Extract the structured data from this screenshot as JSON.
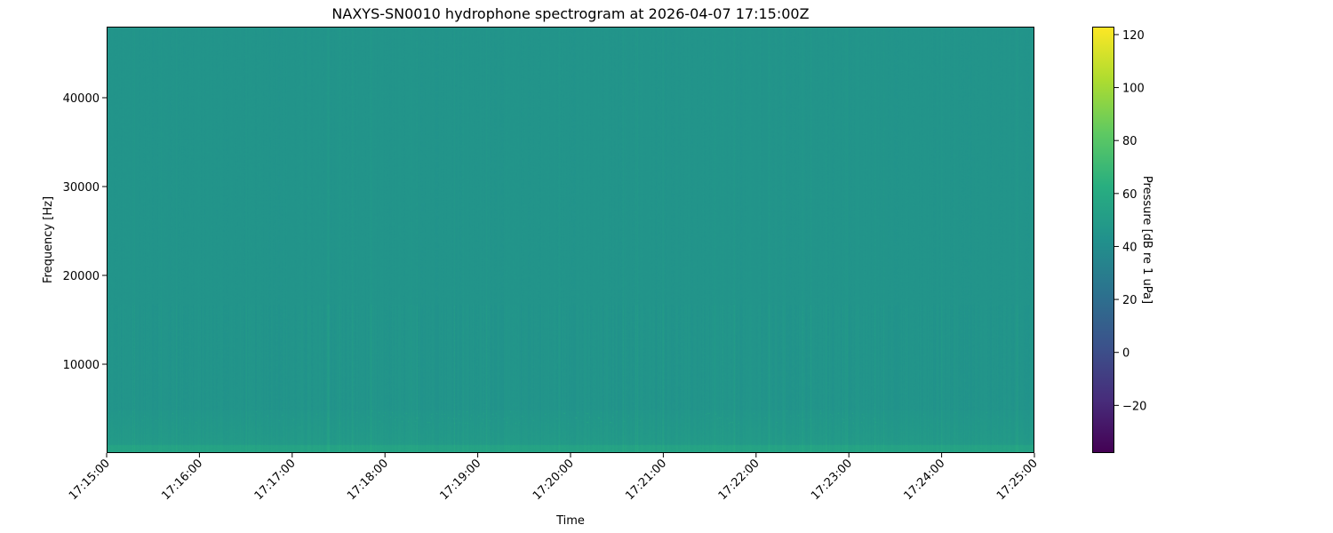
{
  "chart_data": {
    "type": "heatmap",
    "title": "NAXYS-SN0010 hydrophone spectrogram at 2026-04-07 17:15:00Z",
    "xlabel": "Time",
    "ylabel": "Frequency [Hz]",
    "x_ticks": [
      "17:15:00",
      "17:16:00",
      "17:17:00",
      "17:18:00",
      "17:19:00",
      "17:20:00",
      "17:21:00",
      "17:22:00",
      "17:23:00",
      "17:24:00",
      "17:25:00"
    ],
    "x_range": [
      "17:15:00",
      "17:25:00"
    ],
    "y_ticks": [
      10000,
      20000,
      30000,
      40000
    ],
    "y_range": [
      0,
      48000
    ],
    "colorbar": {
      "label": "Pressure [dB re 1 uPa]",
      "colormap": "viridis",
      "ticks": [
        -20,
        0,
        20,
        40,
        60,
        80,
        100,
        120
      ],
      "range": [
        -38,
        123
      ]
    },
    "typical_level_db": 45,
    "low_frequency_band_level_db": 55,
    "grid": false
  }
}
